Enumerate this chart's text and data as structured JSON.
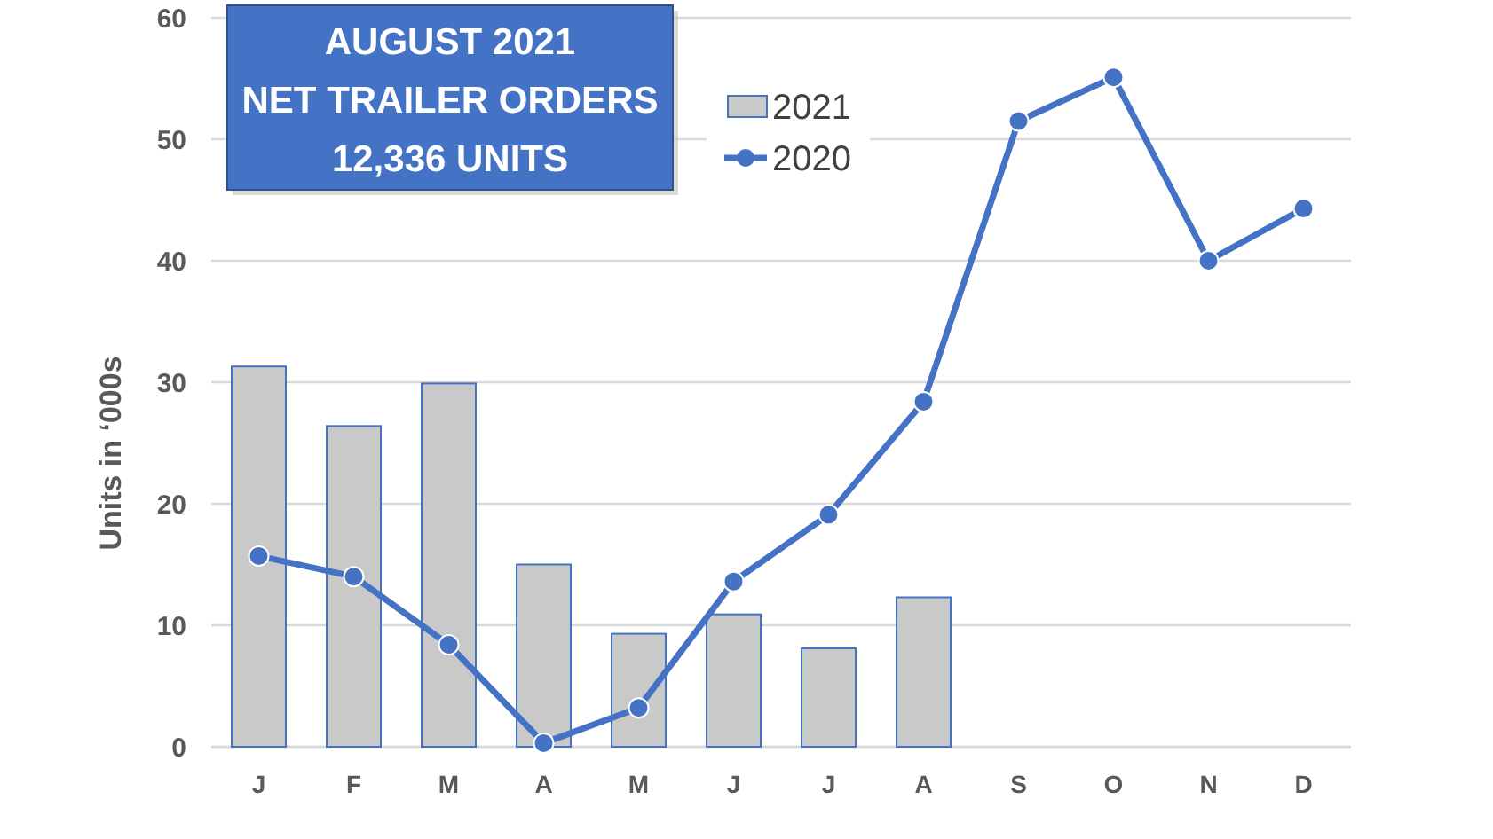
{
  "chart_data": {
    "type": "bar",
    "title": "AUGUST 2021\nNET TRAILER ORDERS\n12,336 UNITS",
    "ylabel": "Units in ‘000s",
    "categories": [
      "J",
      "F",
      "M",
      "A",
      "M",
      "J",
      "J",
      "A",
      "S",
      "O",
      "N",
      "D"
    ],
    "series": [
      {
        "name": "2021",
        "color": "#c9c9c9",
        "values": [
          31.3,
          26.4,
          29.9,
          15.0,
          9.3,
          10.9,
          8.1,
          12.3,
          null,
          null,
          null,
          null
        ]
      },
      {
        "name": "2020",
        "type": "line",
        "color": "#4472c4",
        "values": [
          15.7,
          14.0,
          8.4,
          0.3,
          3.2,
          13.6,
          19.1,
          28.4,
          51.5,
          55.1,
          40.0,
          44.3
        ]
      }
    ],
    "ylim": [
      0,
      60
    ],
    "yticks": [
      0,
      10,
      20,
      30,
      40,
      50,
      60
    ],
    "grid": "y",
    "legend": "top",
    "marker": "circle"
  }
}
